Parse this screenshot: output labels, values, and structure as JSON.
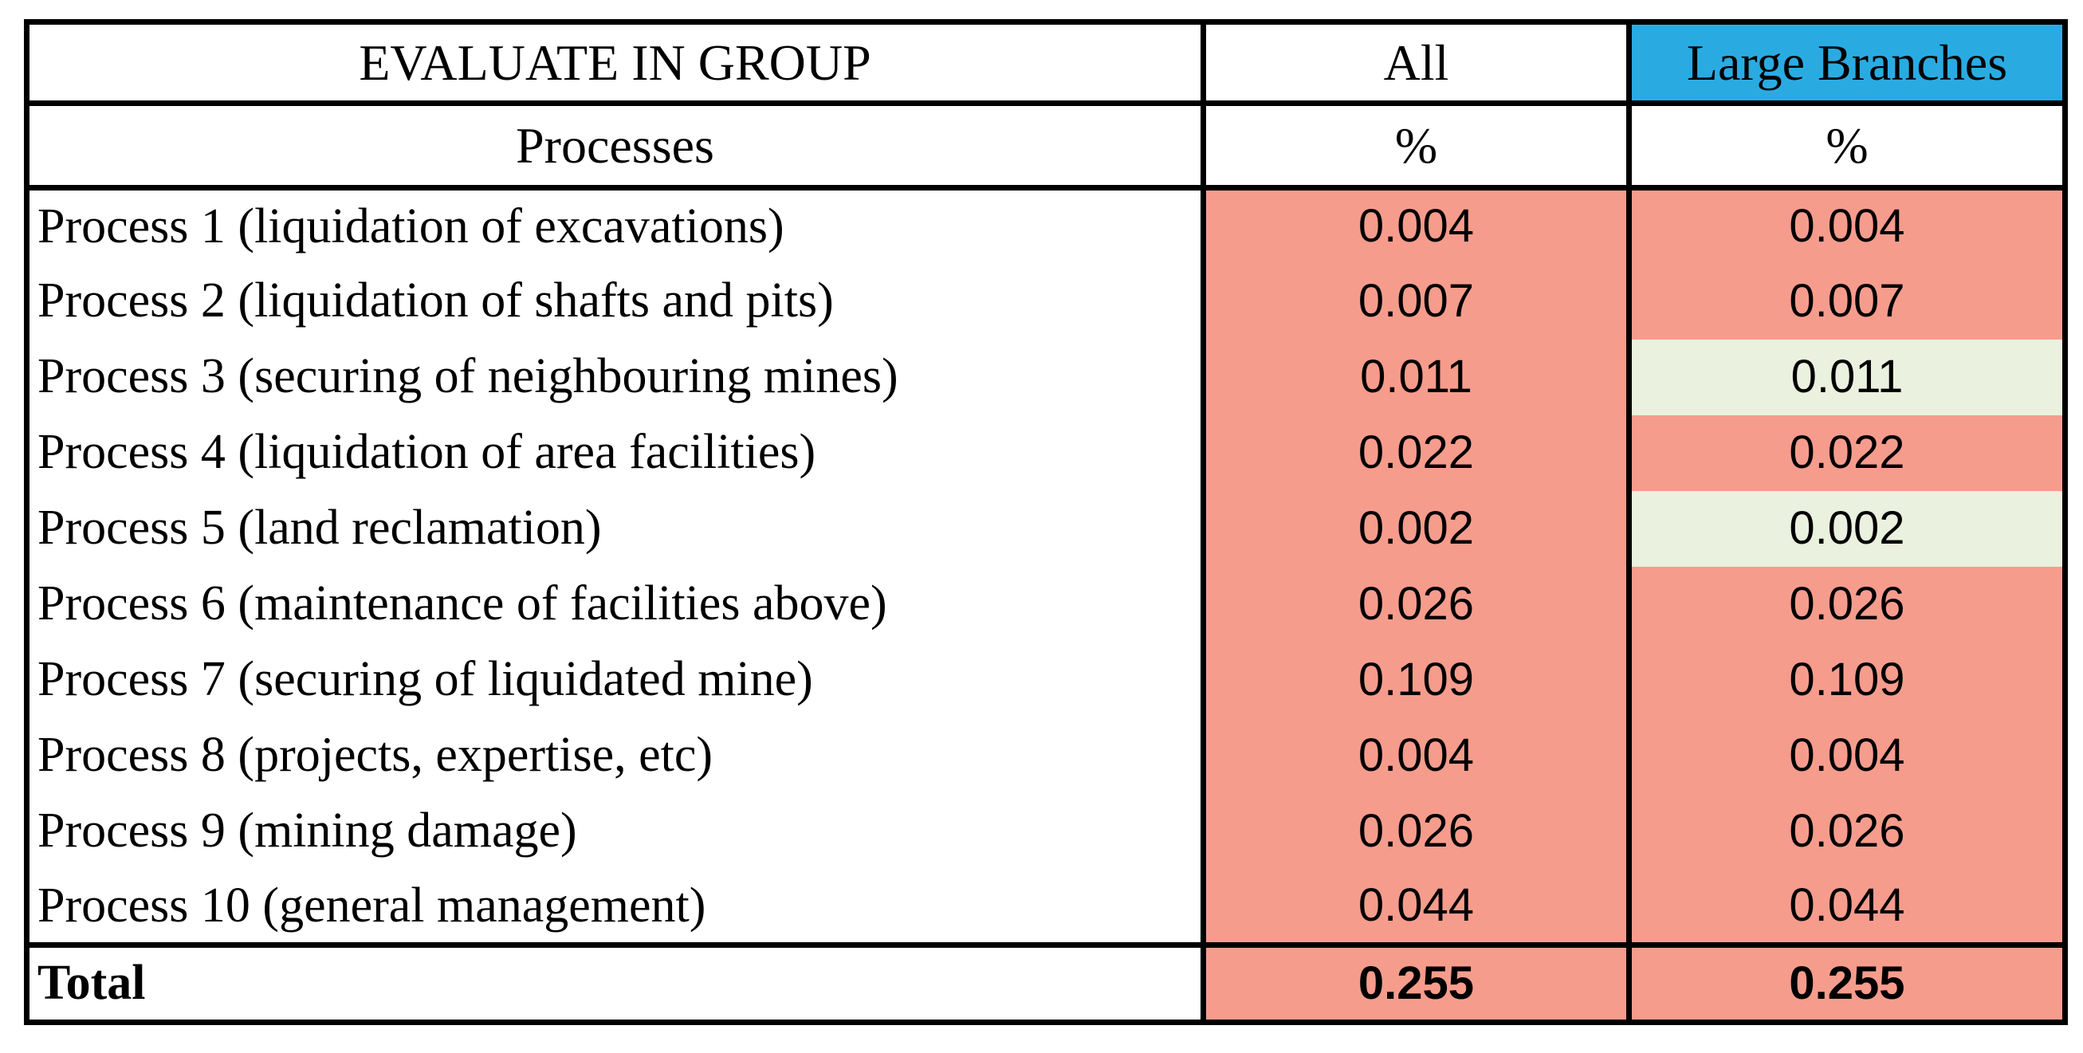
{
  "table": {
    "header_row_1": {
      "group": "EVALUATE IN GROUP",
      "all": "All",
      "large": "Large Branches"
    },
    "header_row_2": {
      "processes": "Processes",
      "all_unit": "%",
      "large_unit": "%"
    },
    "rows": [
      {
        "name": "Process 1 (liquidation of excavations)",
        "all": "0.004",
        "large": "0.004",
        "large_bg": "#F69C8D"
      },
      {
        "name": "Process 2 (liquidation of shafts and pits)",
        "all": "0.007",
        "large": "0.007",
        "large_bg": "#F69C8D"
      },
      {
        "name": "Process 3 (securing of neighbouring mines)",
        "all": "0.011",
        "large": "0.011",
        "large_bg": "#EAF1DE"
      },
      {
        "name": "Process 4 (liquidation of area facilities)",
        "all": "0.022",
        "large": "0.022",
        "large_bg": "#F69C8D"
      },
      {
        "name": "Process 5 (land reclamation)",
        "all": "0.002",
        "large": "0.002",
        "large_bg": "#EAF1DE"
      },
      {
        "name": "Process 6 (maintenance of facilities above)",
        "all": "0.026",
        "large": "0.026",
        "large_bg": "#F69C8D"
      },
      {
        "name": "Process 7 (securing of liquidated mine)",
        "all": "0.109",
        "large": "0.109",
        "large_bg": "#F69C8D"
      },
      {
        "name": "Process 8 (projects, expertise, etc)",
        "all": "0.004",
        "large": "0.004",
        "large_bg": "#F69C8D"
      },
      {
        "name": "Process 9 (mining damage)",
        "all": "0.026",
        "large": "0.026",
        "large_bg": "#F69C8D"
      },
      {
        "name": "Process 10 (general management)",
        "all": "0.044",
        "large": "0.044",
        "large_bg": "#F69C8D"
      }
    ],
    "total_row": {
      "label": "Total",
      "all": "0.255",
      "large": "0.255"
    },
    "colors": {
      "header_large_bg": "#29ABE2",
      "value_bg": "#F69C8D",
      "value_alt_bg": "#EAF1DE",
      "border": "#000000",
      "text": "#000000"
    }
  },
  "chart_data": {
    "type": "table",
    "title": "EVALUATE IN GROUP",
    "columns": [
      "Processes",
      "All %",
      "Large Branches %"
    ],
    "categories": [
      "Process 1 (liquidation of excavations)",
      "Process 2 (liquidation of shafts and pits)",
      "Process 3 (securing of neighbouring mines)",
      "Process 4 (liquidation of area facilities)",
      "Process 5 (land reclamation)",
      "Process 6 (maintenance of facilities above)",
      "Process 7 (securing of liquidated mine)",
      "Process 8 (projects, expertise, etc)",
      "Process 9 (mining damage)",
      "Process 10 (general management)"
    ],
    "series": [
      {
        "name": "All",
        "values": [
          0.004,
          0.007,
          0.011,
          0.022,
          0.002,
          0.026,
          0.109,
          0.004,
          0.026,
          0.044
        ],
        "total": 0.255
      },
      {
        "name": "Large Branches",
        "values": [
          0.004,
          0.007,
          0.011,
          0.022,
          0.002,
          0.026,
          0.109,
          0.004,
          0.026,
          0.044
        ],
        "total": 0.255
      }
    ],
    "highlighted_cells": [
      {
        "series": "Large Branches",
        "row_numbers": [
          3,
          5
        ],
        "color": "#EAF1DE"
      }
    ]
  }
}
